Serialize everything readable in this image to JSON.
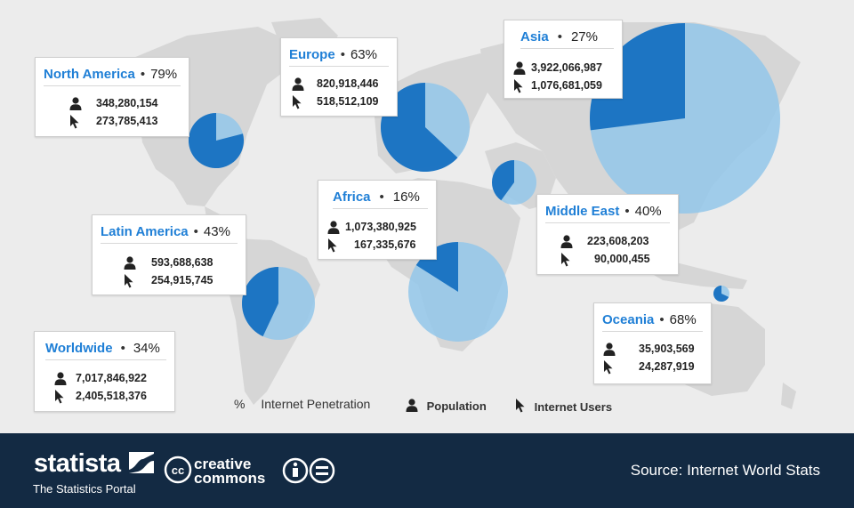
{
  "chart_data": {
    "type": "pie",
    "regions": [
      {
        "name": "North America",
        "penetration": "79%",
        "population": "348,280,154",
        "internet_users": "273,785,413",
        "share": 0.79
      },
      {
        "name": "Europe",
        "penetration": "63%",
        "population": "820,918,446",
        "internet_users": "518,512,109",
        "share": 0.63
      },
      {
        "name": "Asia",
        "penetration": "27%",
        "population": "3,922,066,987",
        "internet_users": "1,076,681,059",
        "share": 0.27
      },
      {
        "name": "Africa",
        "penetration": "16%",
        "population": "1,073,380,925",
        "internet_users": "167,335,676",
        "share": 0.16
      },
      {
        "name": "Middle East",
        "penetration": "40%",
        "population": "223,608,203",
        "internet_users": "90,000,455",
        "share": 0.4
      },
      {
        "name": "Latin America",
        "penetration": "43%",
        "population": "593,688,638",
        "internet_users": "254,915,745",
        "share": 0.43
      },
      {
        "name": "Oceania",
        "penetration": "68%",
        "population": "35,903,569",
        "internet_users": "24,287,919",
        "share": 0.68
      },
      {
        "name": "Worldwide",
        "penetration": "34%",
        "population": "7,017,846,922",
        "internet_users": "2,405,518,376",
        "share": 0.34
      }
    ],
    "legend": [
      {
        "symbol": "%",
        "label": "Internet Penetration"
      },
      {
        "icon": "person-icon",
        "label": "Population"
      },
      {
        "icon": "cursor-icon",
        "label": "Internet Users"
      }
    ],
    "colors": {
      "penetration": "#0f6cbf",
      "remainder": "#93c7ea"
    }
  },
  "legend": {
    "percent_symbol": "%",
    "penetration": "Internet Penetration",
    "population": "Population",
    "users": "Internet Users"
  },
  "footer": {
    "brand": "statista",
    "tagline": "The Statistics Portal",
    "cc_label_1": "creative",
    "cc_label_2": "commons",
    "source": "Source: Internet World Stats"
  },
  "colors": {
    "accent": "#1f7fd6",
    "footer_bg": "#132a43",
    "map": "#d5d5d5",
    "background": "#ececec"
  }
}
